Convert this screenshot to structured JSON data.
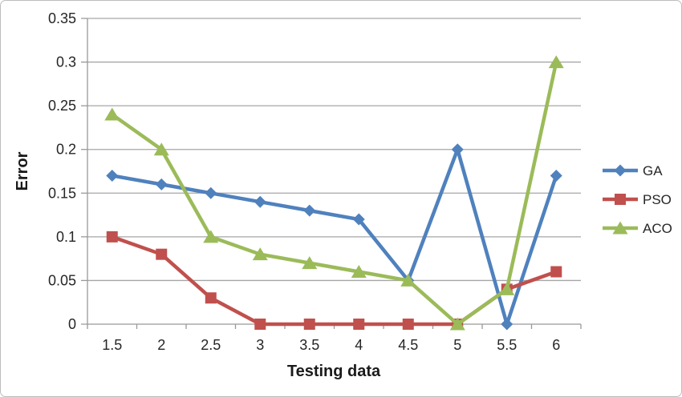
{
  "chart_data": {
    "type": "line",
    "title": "",
    "xlabel": "Testing data",
    "ylabel": "Error",
    "x_categories": [
      "1.5",
      "2",
      "2.5",
      "3",
      "3.5",
      "4",
      "4.5",
      "5",
      "5.5",
      "6"
    ],
    "x_values": [
      1.5,
      2,
      2.5,
      3,
      3.5,
      4,
      4.5,
      5,
      5.5,
      6
    ],
    "y_ticks": [
      "0",
      "0.05",
      "0.1",
      "0.15",
      "0.2",
      "0.25",
      "0.3",
      "0.35"
    ],
    "ylim": [
      0,
      0.35
    ],
    "grid": "horizontal",
    "legend_position": "right",
    "series": [
      {
        "name": "GA",
        "marker": "diamond",
        "color": "#4F81BD",
        "values": [
          0.17,
          0.16,
          0.15,
          0.14,
          0.13,
          0.12,
          0.05,
          0.2,
          0,
          0.17
        ]
      },
      {
        "name": "PSO",
        "marker": "square",
        "color": "#C0504D",
        "values": [
          0.1,
          0.08,
          0.03,
          0,
          0,
          0,
          0,
          0,
          0.04,
          0.06
        ]
      },
      {
        "name": "ACO",
        "marker": "triangle",
        "color": "#9BBB59",
        "values": [
          0.24,
          0.2,
          0.1,
          0.08,
          0.07,
          0.06,
          0.05,
          0,
          0.04,
          0.3
        ]
      }
    ]
  },
  "colors": {
    "gridline": "#A6A6A6",
    "axis": "#999999",
    "text": "#262626",
    "frame": "#BDBDBD",
    "background": "#FFFFFF"
  }
}
